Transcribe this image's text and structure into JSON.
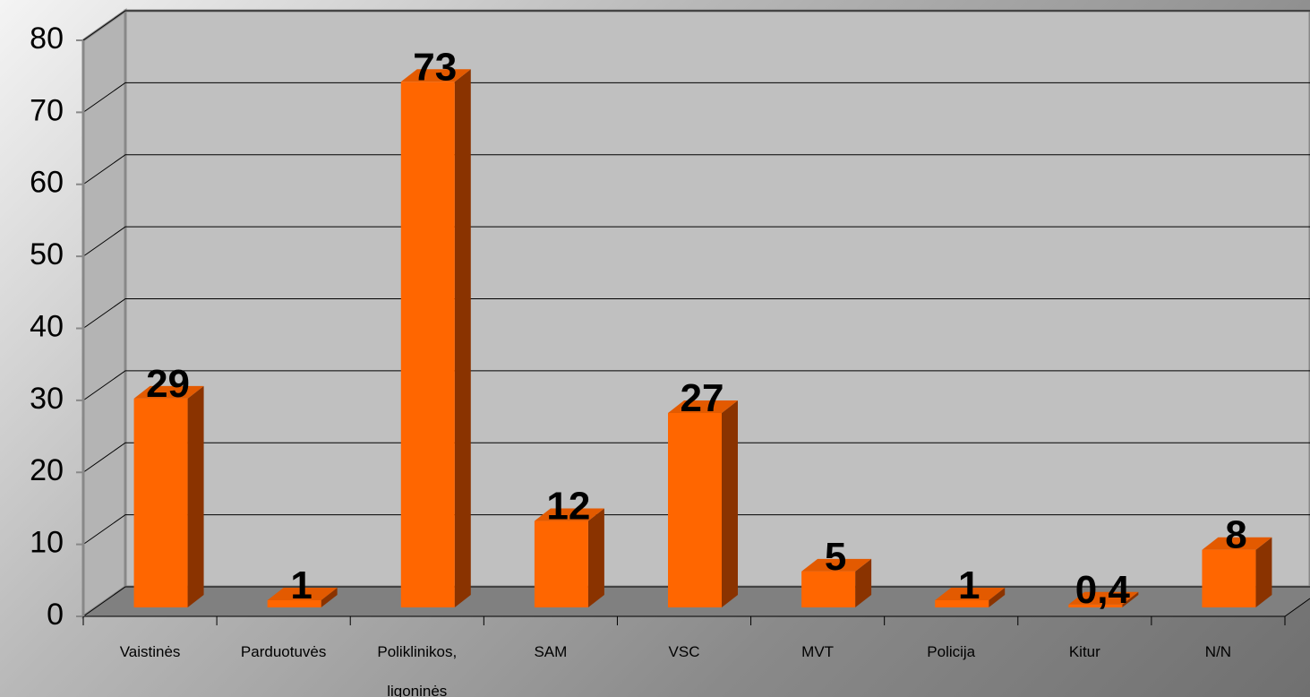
{
  "chart_data": {
    "type": "bar3d",
    "categories": [
      "Vaistinės",
      "Parduotuvės",
      "Poliklinikos, ligoninės",
      "SAM",
      "VSC",
      "MVT",
      "Policija",
      "Kitur",
      "N/N"
    ],
    "values": [
      29,
      1,
      73,
      12,
      27,
      5,
      1,
      0.4,
      8
    ],
    "value_labels": [
      "29",
      "1",
      "73",
      "12",
      "27",
      "5",
      "1",
      "0,4",
      "8"
    ],
    "color": "#ff6600",
    "ylim": [
      0,
      80
    ],
    "yticks": [
      0,
      10,
      20,
      30,
      40,
      50,
      60,
      70,
      80
    ],
    "grid": true
  }
}
